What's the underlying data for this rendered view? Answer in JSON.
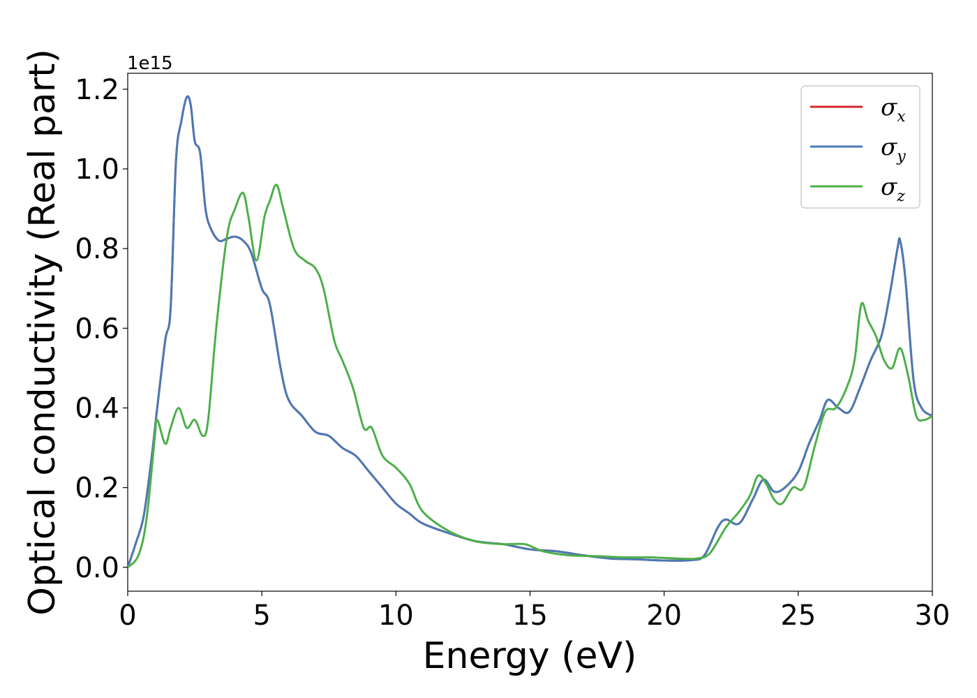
{
  "chart_data": {
    "type": "line",
    "xlabel": "Energy (eV)",
    "ylabel": "Optical conductivity (Real part)",
    "y_offset_label": "1e15",
    "xlim": [
      0,
      30
    ],
    "ylim": [
      -0.06,
      1.24
    ],
    "xticks": [
      0,
      5,
      10,
      15,
      20,
      25,
      30
    ],
    "xtick_labels": [
      "0",
      "5",
      "10",
      "15",
      "20",
      "25",
      "30"
    ],
    "yticks": [
      0.0,
      0.2,
      0.4,
      0.6,
      0.8,
      1.0,
      1.2
    ],
    "ytick_labels": [
      "0.0",
      "0.2",
      "0.4",
      "0.6",
      "0.8",
      "1.0",
      "1.2"
    ],
    "grid": false,
    "legend_position": "top-right",
    "series": [
      {
        "name": "σ_x",
        "symbol": "σ",
        "subscript": "x",
        "color": "#d62728",
        "x": [
          0,
          0.3,
          0.6,
          0.9,
          1.1,
          1.4,
          1.6,
          1.8,
          2.0,
          2.2,
          2.35,
          2.5,
          2.7,
          2.9,
          3.1,
          3.4,
          3.7,
          4.0,
          4.3,
          4.6,
          5.0,
          5.3,
          5.7,
          6.0,
          6.5,
          7.0,
          7.5,
          8.0,
          8.5,
          9.0,
          9.5,
          10.0,
          10.5,
          11.0,
          12.0,
          13.0,
          14.0,
          15.0,
          16.0,
          17.0,
          18.0,
          19.0,
          20.0,
          21.0,
          21.5,
          22.0,
          22.3,
          22.8,
          23.3,
          23.7,
          24.1,
          24.5,
          25.0,
          25.4,
          25.8,
          26.1,
          26.5,
          26.9,
          27.3,
          27.7,
          28.1,
          28.4,
          28.7,
          28.8,
          29.0,
          29.3,
          29.6,
          30.0
        ],
        "values": [
          0.0,
          0.06,
          0.13,
          0.28,
          0.4,
          0.57,
          0.65,
          1.02,
          1.12,
          1.18,
          1.16,
          1.07,
          1.04,
          0.9,
          0.85,
          0.82,
          0.825,
          0.83,
          0.82,
          0.79,
          0.7,
          0.66,
          0.5,
          0.42,
          0.38,
          0.34,
          0.33,
          0.3,
          0.28,
          0.24,
          0.2,
          0.16,
          0.135,
          0.11,
          0.085,
          0.065,
          0.058,
          0.045,
          0.04,
          0.03,
          0.022,
          0.02,
          0.017,
          0.018,
          0.03,
          0.1,
          0.12,
          0.11,
          0.17,
          0.22,
          0.19,
          0.2,
          0.24,
          0.31,
          0.37,
          0.42,
          0.4,
          0.39,
          0.45,
          0.52,
          0.58,
          0.68,
          0.8,
          0.82,
          0.72,
          0.47,
          0.4,
          0.38
        ]
      },
      {
        "name": "σ_y",
        "symbol": "σ",
        "subscript": "y",
        "color": "#4a7ab5",
        "x": [
          0,
          0.3,
          0.6,
          0.9,
          1.1,
          1.4,
          1.6,
          1.8,
          2.0,
          2.2,
          2.35,
          2.5,
          2.7,
          2.9,
          3.1,
          3.4,
          3.7,
          4.0,
          4.3,
          4.6,
          5.0,
          5.3,
          5.7,
          6.0,
          6.5,
          7.0,
          7.5,
          8.0,
          8.5,
          9.0,
          9.5,
          10.0,
          10.5,
          11.0,
          12.0,
          13.0,
          14.0,
          15.0,
          16.0,
          17.0,
          18.0,
          19.0,
          20.0,
          21.0,
          21.5,
          22.0,
          22.3,
          22.8,
          23.3,
          23.7,
          24.1,
          24.5,
          25.0,
          25.4,
          25.8,
          26.1,
          26.5,
          26.9,
          27.3,
          27.7,
          28.1,
          28.4,
          28.7,
          28.8,
          29.0,
          29.3,
          29.6,
          30.0
        ],
        "values": [
          0.0,
          0.06,
          0.13,
          0.28,
          0.4,
          0.57,
          0.65,
          1.02,
          1.12,
          1.18,
          1.16,
          1.07,
          1.04,
          0.9,
          0.85,
          0.82,
          0.825,
          0.83,
          0.82,
          0.79,
          0.7,
          0.66,
          0.5,
          0.42,
          0.38,
          0.34,
          0.33,
          0.3,
          0.28,
          0.24,
          0.2,
          0.16,
          0.135,
          0.11,
          0.085,
          0.065,
          0.058,
          0.045,
          0.04,
          0.03,
          0.022,
          0.02,
          0.017,
          0.018,
          0.03,
          0.1,
          0.12,
          0.11,
          0.17,
          0.22,
          0.19,
          0.2,
          0.24,
          0.31,
          0.37,
          0.42,
          0.4,
          0.39,
          0.45,
          0.52,
          0.58,
          0.68,
          0.8,
          0.82,
          0.72,
          0.47,
          0.4,
          0.38
        ]
      },
      {
        "name": "σ_z",
        "symbol": "σ",
        "subscript": "z",
        "color": "#4daf4a",
        "x": [
          0,
          0.4,
          0.7,
          1.0,
          1.1,
          1.4,
          1.6,
          1.9,
          2.2,
          2.5,
          2.8,
          3.0,
          3.3,
          3.7,
          4.0,
          4.3,
          4.5,
          4.8,
          5.1,
          5.3,
          5.55,
          5.8,
          6.2,
          6.6,
          7.0,
          7.3,
          7.7,
          8.0,
          8.4,
          8.8,
          9.1,
          9.5,
          10.0,
          10.5,
          11.0,
          12.0,
          13.0,
          14.0,
          14.8,
          15.5,
          16.5,
          17.5,
          18.5,
          19.5,
          20.5,
          21.2,
          21.7,
          22.3,
          22.8,
          23.2,
          23.5,
          23.8,
          24.1,
          24.4,
          24.8,
          25.2,
          25.6,
          26.0,
          26.4,
          26.8,
          27.1,
          27.35,
          27.6,
          27.9,
          28.2,
          28.5,
          28.8,
          29.1,
          29.4,
          29.7,
          30.0
        ],
        "values": [
          0.0,
          0.03,
          0.12,
          0.32,
          0.37,
          0.31,
          0.35,
          0.4,
          0.35,
          0.37,
          0.33,
          0.37,
          0.6,
          0.83,
          0.9,
          0.94,
          0.88,
          0.77,
          0.88,
          0.92,
          0.96,
          0.9,
          0.8,
          0.77,
          0.75,
          0.7,
          0.57,
          0.52,
          0.45,
          0.35,
          0.35,
          0.28,
          0.25,
          0.21,
          0.14,
          0.09,
          0.065,
          0.058,
          0.058,
          0.04,
          0.03,
          0.028,
          0.025,
          0.025,
          0.022,
          0.022,
          0.035,
          0.1,
          0.14,
          0.18,
          0.23,
          0.21,
          0.17,
          0.16,
          0.2,
          0.2,
          0.3,
          0.39,
          0.4,
          0.45,
          0.52,
          0.66,
          0.62,
          0.58,
          0.52,
          0.5,
          0.55,
          0.48,
          0.38,
          0.37,
          0.38
        ]
      }
    ]
  }
}
